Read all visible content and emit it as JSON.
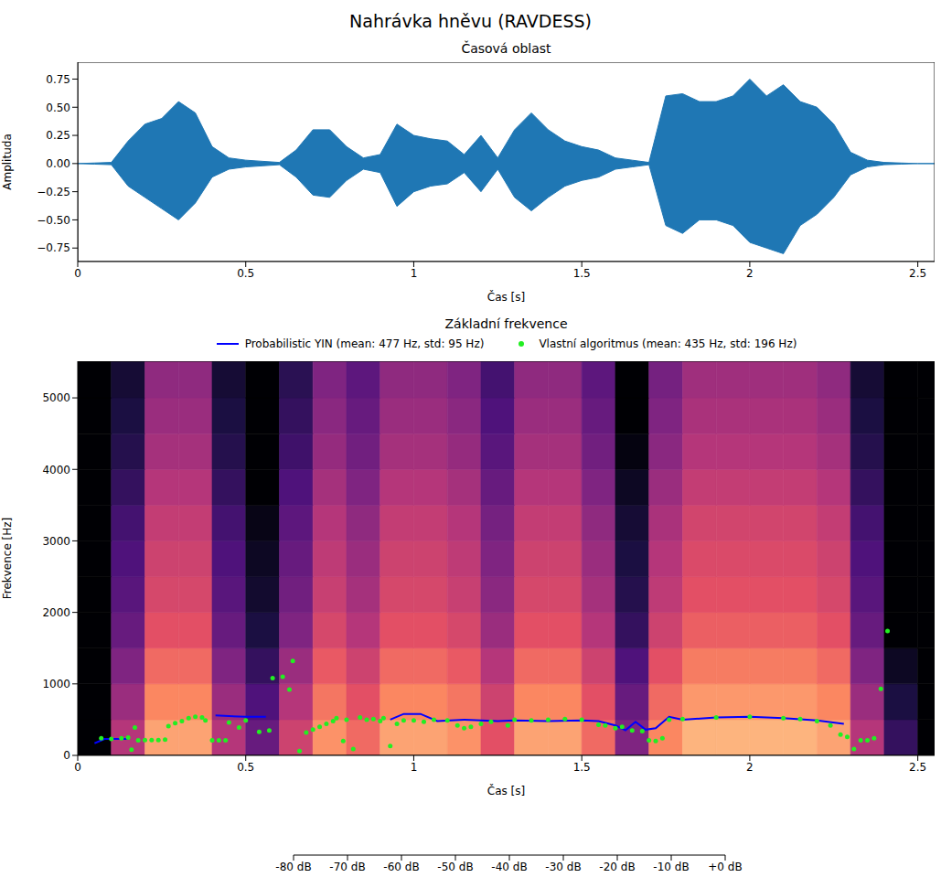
{
  "title": "Nahrávka hněvu (RAVDESS)",
  "chart_data": [
    {
      "type": "area",
      "title": "Časová oblast",
      "x_label": "Čas [s]",
      "y_label": "Amplituda",
      "xlim": [
        0,
        2.55
      ],
      "xticks": [
        0,
        0.5,
        1,
        1.5,
        2,
        2.5
      ],
      "ylim": [
        -0.87,
        0.9
      ],
      "yticks": [
        {
          "value": -0.75,
          "label": "−0.75"
        },
        {
          "value": -0.5,
          "label": "−0.50"
        },
        {
          "value": -0.25,
          "label": "−0.25"
        },
        {
          "value": 0,
          "label": "0.00"
        },
        {
          "value": 0.25,
          "label": "0.25"
        },
        {
          "value": 0.5,
          "label": "0.50"
        },
        {
          "value": 0.75,
          "label": "0.75"
        }
      ],
      "x": [
        0,
        0.05,
        0.1,
        0.15,
        0.2,
        0.25,
        0.3,
        0.35,
        0.4,
        0.45,
        0.5,
        0.55,
        0.6,
        0.65,
        0.7,
        0.75,
        0.8,
        0.85,
        0.9,
        0.95,
        1.0,
        1.05,
        1.1,
        1.15,
        1.2,
        1.25,
        1.3,
        1.35,
        1.4,
        1.45,
        1.5,
        1.55,
        1.6,
        1.65,
        1.7,
        1.75,
        1.8,
        1.85,
        1.9,
        1.95,
        2.0,
        2.05,
        2.1,
        2.15,
        2.2,
        2.25,
        2.3,
        2.35,
        2.4,
        2.45,
        2.5,
        2.55
      ],
      "series": [
        {
          "color": "#1f77b4",
          "upper": [
            0,
            0.005,
            0.01,
            0.2,
            0.35,
            0.4,
            0.55,
            0.45,
            0.15,
            0.05,
            0.03,
            0.02,
            0.01,
            0.12,
            0.3,
            0.3,
            0.15,
            0.05,
            0.08,
            0.35,
            0.25,
            0.22,
            0.2,
            0.08,
            0.25,
            0.05,
            0.3,
            0.45,
            0.3,
            0.2,
            0.15,
            0.12,
            0.05,
            0.03,
            0.01,
            0.6,
            0.62,
            0.55,
            0.55,
            0.6,
            0.75,
            0.6,
            0.7,
            0.55,
            0.5,
            0.35,
            0.1,
            0.03,
            0.01,
            0.005,
            0,
            0
          ],
          "lower": [
            0,
            -0.005,
            -0.01,
            -0.2,
            -0.3,
            -0.4,
            -0.5,
            -0.35,
            -0.12,
            -0.05,
            -0.03,
            -0.02,
            -0.01,
            -0.12,
            -0.28,
            -0.3,
            -0.15,
            -0.05,
            -0.08,
            -0.38,
            -0.25,
            -0.2,
            -0.18,
            -0.08,
            -0.25,
            -0.05,
            -0.3,
            -0.42,
            -0.3,
            -0.2,
            -0.15,
            -0.12,
            -0.05,
            -0.03,
            -0.01,
            -0.55,
            -0.62,
            -0.5,
            -0.5,
            -0.55,
            -0.7,
            -0.75,
            -0.8,
            -0.55,
            -0.45,
            -0.3,
            -0.1,
            -0.03,
            -0.01,
            -0.005,
            0,
            0
          ]
        }
      ]
    },
    {
      "type": "line",
      "title": "Základní frekvence",
      "x_label": "Čas [s]",
      "y_label": "Frekvence [Hz]",
      "xlim": [
        0,
        2.55
      ],
      "xticks": [
        0,
        0.5,
        1,
        1.5,
        2,
        2.5
      ],
      "ylim": [
        0,
        5512.5
      ],
      "yticks": [
        0,
        1000,
        2000,
        3000,
        4000,
        5000
      ],
      "legend": "top",
      "series": [
        {
          "name": "Probabilistic YIN (mean: 477 Hz, std: 95 Hz)",
          "type": "line",
          "color": "#0000ff",
          "x": [
            0.05,
            0.08,
            0.15,
            0.16,
            0.41,
            0.45,
            0.5,
            0.56,
            0.57,
            0.93,
            0.97,
            1.02,
            1.07,
            1.15,
            1.25,
            1.3,
            1.4,
            1.5,
            1.55,
            1.6,
            1.63,
            1.66,
            1.69,
            1.72,
            1.76,
            1.8,
            1.9,
            2.0,
            2.1,
            2.2,
            2.28
          ],
          "values": [
            170,
            230,
            230,
            null,
            560,
            550,
            540,
            540,
            null,
            500,
            580,
            580,
            480,
            500,
            480,
            490,
            480,
            490,
            480,
            420,
            350,
            470,
            360,
            380,
            540,
            500,
            530,
            540,
            520,
            490,
            440
          ]
        },
        {
          "name": "Vlastní algoritmus (mean: 435 Hz, std: 196 Hz)",
          "type": "scatter",
          "marker": "circle",
          "color": "#22ee22",
          "x": [
            0.07,
            0.1,
            0.13,
            0.15,
            0.16,
            0.17,
            0.18,
            0.2,
            0.22,
            0.24,
            0.26,
            0.27,
            0.29,
            0.31,
            0.33,
            0.35,
            0.37,
            0.38,
            0.4,
            0.42,
            0.44,
            0.45,
            0.48,
            0.5,
            0.54,
            0.57,
            0.58,
            0.61,
            0.63,
            0.64,
            0.66,
            0.68,
            0.7,
            0.72,
            0.74,
            0.76,
            0.77,
            0.79,
            0.8,
            0.82,
            0.84,
            0.86,
            0.88,
            0.9,
            0.91,
            0.93,
            0.95,
            0.97,
            1.0,
            1.03,
            1.06,
            1.1,
            1.13,
            1.15,
            1.17,
            1.2,
            1.23,
            1.28,
            1.3,
            1.35,
            1.4,
            1.45,
            1.5,
            1.55,
            1.57,
            1.6,
            1.62,
            1.65,
            1.68,
            1.7,
            1.72,
            1.74,
            1.76,
            1.8,
            1.9,
            2.0,
            2.1,
            2.15,
            2.2,
            2.24,
            2.27,
            2.29,
            2.31,
            2.33,
            2.35,
            2.37,
            2.39,
            2.41
          ],
          "values": [
            240,
            230,
            240,
            250,
            80,
            390,
            210,
            215,
            215,
            215,
            220,
            410,
            450,
            480,
            520,
            540,
            530,
            490,
            210,
            210,
            210,
            460,
            390,
            490,
            330,
            350,
            1080,
            1100,
            920,
            1320,
            60,
            320,
            360,
            400,
            440,
            480,
            520,
            200,
            500,
            90,
            530,
            500,
            510,
            480,
            520,
            130,
            440,
            490,
            490,
            470,
            500,
            490,
            420,
            380,
            400,
            440,
            470,
            420,
            500,
            490,
            500,
            510,
            500,
            430,
            420,
            380,
            400,
            350,
            340,
            210,
            200,
            240,
            500,
            510,
            530,
            540,
            520,
            510,
            480,
            420,
            290,
            260,
            90,
            210,
            210,
            240,
            930,
            1740
          ]
        }
      ],
      "heatmap": {
        "x_edges": [
          0,
          0.1,
          0.2,
          0.3,
          0.4,
          0.5,
          0.6,
          0.7,
          0.8,
          0.9,
          1.0,
          1.1,
          1.2,
          1.3,
          1.4,
          1.5,
          1.6,
          1.7,
          1.8,
          1.9,
          2.0,
          2.1,
          2.2,
          2.3,
          2.4,
          2.5,
          2.55
        ],
        "y_edges": [
          0,
          500,
          1000,
          1500,
          2000,
          2500,
          3000,
          3500,
          4000,
          4500,
          5000,
          5512.5
        ],
        "values": [
          [
            -80,
            -40,
            -15,
            -15,
            -40,
            -55,
            -35,
            -18,
            -25,
            -15,
            -15,
            -18,
            -30,
            -15,
            -15,
            -25,
            -50,
            -20,
            -12,
            -12,
            -12,
            -12,
            -15,
            -40,
            -65,
            -80
          ],
          [
            -80,
            -45,
            -20,
            -20,
            -45,
            -60,
            -40,
            -23,
            -30,
            -20,
            -20,
            -23,
            -35,
            -20,
            -20,
            -30,
            -55,
            -25,
            -17,
            -17,
            -17,
            -17,
            -20,
            -45,
            -70,
            -80
          ],
          [
            -80,
            -50,
            -25,
            -25,
            -50,
            -65,
            -45,
            -28,
            -35,
            -25,
            -25,
            -28,
            -40,
            -25,
            -25,
            -35,
            -60,
            -30,
            -22,
            -22,
            -22,
            -22,
            -25,
            -50,
            -75,
            -80
          ],
          [
            -80,
            -55,
            -30,
            -30,
            -55,
            -70,
            -50,
            -33,
            -40,
            -30,
            -30,
            -33,
            -45,
            -30,
            -30,
            -40,
            -65,
            -35,
            -27,
            -27,
            -27,
            -27,
            -30,
            -55,
            -80,
            -80
          ],
          [
            -80,
            -58,
            -33,
            -33,
            -58,
            -73,
            -53,
            -36,
            -43,
            -33,
            -33,
            -36,
            -48,
            -33,
            -33,
            -43,
            -68,
            -38,
            -30,
            -30,
            -30,
            -30,
            -33,
            -58,
            -80,
            -80
          ],
          [
            -80,
            -60,
            -35,
            -35,
            -60,
            -75,
            -55,
            -38,
            -45,
            -35,
            -35,
            -38,
            -50,
            -35,
            -35,
            -45,
            -70,
            -40,
            -32,
            -32,
            -32,
            -32,
            -35,
            -60,
            -80,
            -80
          ],
          [
            -80,
            -62,
            -37,
            -37,
            -62,
            -77,
            -57,
            -40,
            -47,
            -37,
            -37,
            -40,
            -52,
            -37,
            -37,
            -47,
            -72,
            -42,
            -34,
            -34,
            -34,
            -34,
            -37,
            -62,
            -80,
            -80
          ],
          [
            -80,
            -65,
            -40,
            -40,
            -65,
            -80,
            -60,
            -43,
            -50,
            -40,
            -40,
            -43,
            -55,
            -40,
            -40,
            -50,
            -75,
            -45,
            -37,
            -37,
            -37,
            -37,
            -40,
            -65,
            -80,
            -80
          ],
          [
            -80,
            -68,
            -43,
            -43,
            -68,
            -80,
            -63,
            -46,
            -53,
            -43,
            -43,
            -46,
            -58,
            -43,
            -43,
            -53,
            -78,
            -48,
            -40,
            -40,
            -40,
            -40,
            -43,
            -68,
            -80,
            -80
          ],
          [
            -80,
            -70,
            -45,
            -45,
            -70,
            -80,
            -65,
            -48,
            -55,
            -45,
            -45,
            -48,
            -60,
            -45,
            -45,
            -55,
            -80,
            -50,
            -42,
            -42,
            -42,
            -42,
            -45,
            -70,
            -80,
            -80
          ],
          [
            -80,
            -72,
            -47,
            -47,
            -72,
            -80,
            -67,
            -50,
            -57,
            -47,
            -47,
            -50,
            -62,
            -47,
            -47,
            -57,
            -80,
            -52,
            -44,
            -44,
            -44,
            -44,
            -47,
            -72,
            -80,
            -80
          ]
        ]
      },
      "colorbar": {
        "range": [
          -80,
          0
        ],
        "ticks": [
          {
            "value": -80,
            "label": "-80 dB"
          },
          {
            "value": -70,
            "label": "-70 dB"
          },
          {
            "value": -60,
            "label": "-60 dB"
          },
          {
            "value": -50,
            "label": "-50 dB"
          },
          {
            "value": -40,
            "label": "-40 dB"
          },
          {
            "value": -30,
            "label": "-30 dB"
          },
          {
            "value": -20,
            "label": "-20 dB"
          },
          {
            "value": -10,
            "label": "-10 dB"
          },
          {
            "value": 0,
            "label": "+0 dB"
          }
        ]
      }
    }
  ]
}
